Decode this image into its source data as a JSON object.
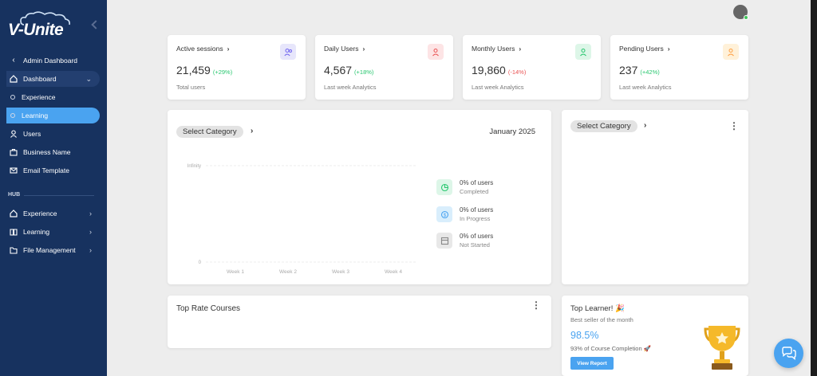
{
  "brand": {
    "name": "V-Unite"
  },
  "sidebar": {
    "items": [
      {
        "label": "Admin Dashboard",
        "icon": "chevron-left-icon"
      },
      {
        "label": "Dashboard",
        "icon": "home-icon"
      },
      {
        "label": "Experience",
        "icon": "circle-icon"
      },
      {
        "label": "Learning",
        "icon": "circle-icon"
      },
      {
        "label": "Users",
        "icon": "user-icon"
      },
      {
        "label": "Business Name",
        "icon": "briefcase-icon"
      },
      {
        "label": "Email Template",
        "icon": "mail-icon"
      }
    ],
    "hub_label": "HUB",
    "hub_items": [
      {
        "label": "Experience",
        "icon": "home-icon"
      },
      {
        "label": "Learning",
        "icon": "book-icon"
      },
      {
        "label": "File Management",
        "icon": "folder-icon"
      }
    ]
  },
  "stats": [
    {
      "title": "Active sessions",
      "value": "21,459",
      "change": "(+29%)",
      "trend": "positive",
      "sub": "Total users",
      "icon": "users-icon",
      "icon_bg": "#e7e6fb",
      "icon_color": "#7367f0"
    },
    {
      "title": "Daily Users",
      "value": "4,567",
      "change": "(+18%)",
      "trend": "positive",
      "sub": "Last week Analytics",
      "icon": "user-plus-icon",
      "icon_bg": "#fde4e5",
      "icon_color": "#ea5455"
    },
    {
      "title": "Monthly Users",
      "value": "19,860",
      "change": "(-14%)",
      "trend": "negative",
      "sub": "Last week Analytics",
      "icon": "user-check-icon",
      "icon_bg": "#ddf6e8",
      "icon_color": "#28c76f"
    },
    {
      "title": "Pending Users",
      "value": "237",
      "change": "(+42%)",
      "trend": "positive",
      "sub": "Last week Analytics",
      "icon": "user-clock-icon",
      "icon_bg": "#fff1d9",
      "icon_color": "#ff9f43"
    }
  ],
  "progress_card": {
    "category_label": "Select Category",
    "month": "January 2025",
    "legend": [
      {
        "value": "0% of users",
        "label": "Completed",
        "icon": "pie-chart-icon",
        "bg": "#ddf6e8",
        "color": "#28c76f"
      },
      {
        "value": "0% of users",
        "label": "In Progress",
        "icon": "dollar-icon",
        "bg": "#d9eefc",
        "color": "#4aa3f0"
      },
      {
        "value": "0% of users",
        "label": "Not Started",
        "icon": "window-icon",
        "bg": "#e8e8e8",
        "color": "#888888"
      }
    ]
  },
  "chart_data": {
    "type": "bar",
    "categories": [
      "Week 1",
      "Week 2",
      "Week 3",
      "Week 4"
    ],
    "values": [
      0,
      0,
      0,
      0
    ],
    "yticks": [
      "Infinity",
      "0"
    ],
    "title": "",
    "xlabel": "",
    "ylabel": ""
  },
  "right_card": {
    "category_label": "Select Category"
  },
  "top_courses": {
    "title": "Top Rate Courses"
  },
  "top_learner": {
    "title": "Top Learner! 🎉",
    "subtitle": "Best seller of the month",
    "value": "98.5%",
    "description": "93% of Course Completion 🚀",
    "button": "View Report"
  },
  "colors": {
    "sidebar": "#17325f",
    "accent": "#4aa3f0",
    "background": "#ededed"
  }
}
